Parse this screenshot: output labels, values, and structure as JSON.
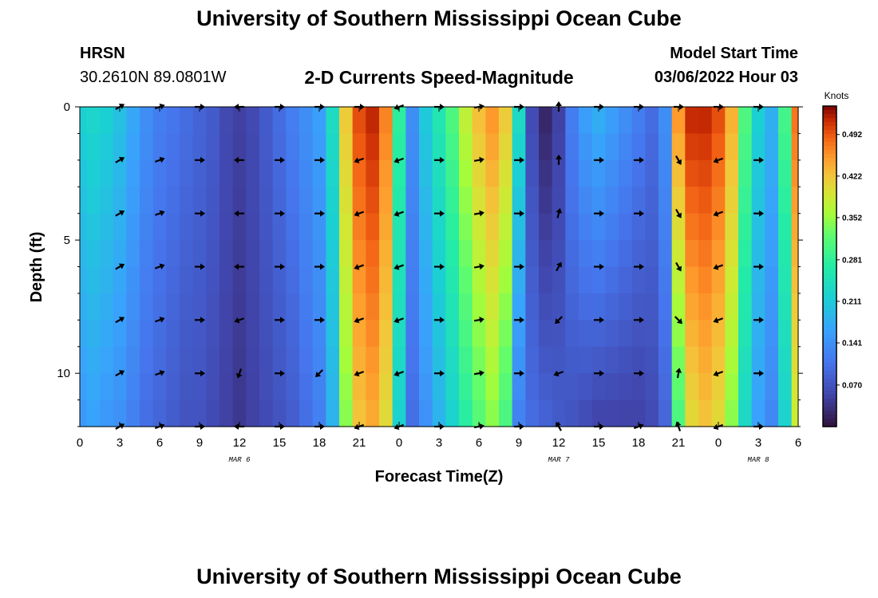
{
  "header": {
    "title": "University of Southern Mississippi Ocean Cube",
    "station": "HRSN",
    "coords": "30.2610N  89.0801W",
    "subtitle": "2-D Currents Speed-Magnitude",
    "model_start_label": "Model Start Time",
    "model_start_value": "03/06/2022 Hour 03"
  },
  "footer": {
    "title": "University of Southern Mississippi Ocean Cube"
  },
  "chart_data": {
    "type": "heatmap",
    "title": "2-D Currents Speed-Magnitude",
    "xlabel": "Forecast Time(Z)",
    "ylabel": "Depth (ft)",
    "colorbar_label": "Knots",
    "xlim": [
      0,
      54
    ],
    "ylim": [
      0,
      12
    ],
    "x_tick_labels": [
      "0",
      "3",
      "6",
      "9",
      "12",
      "15",
      "18",
      "21",
      "0",
      "3",
      "6",
      "9",
      "12",
      "15",
      "18",
      "21",
      "0",
      "3",
      "6"
    ],
    "y_ticks": [
      0,
      5,
      10
    ],
    "date_labels": [
      {
        "label": "MAR 6",
        "hour": 12
      },
      {
        "label": "MAR 7",
        "hour": 36
      },
      {
        "label": "MAR 8",
        "hour": 51
      }
    ],
    "colorbar_ticks": [
      "0.492",
      "0.422",
      "0.352",
      "0.281",
      "0.211",
      "0.141",
      "0.070"
    ],
    "colorbar_range": [
      0.0,
      0.54
    ],
    "column_hour_step": 1,
    "depth_step_ft": 1,
    "speed_profile_surface": [
      0.22,
      0.23,
      0.22,
      0.2,
      0.17,
      0.14,
      0.12,
      0.11,
      0.1,
      0.09,
      0.08,
      0.06,
      0.05,
      0.06,
      0.08,
      0.1,
      0.12,
      0.14,
      0.16,
      0.24,
      0.42,
      0.5,
      0.52,
      0.47,
      0.28,
      0.14,
      0.21,
      0.26,
      0.31,
      0.38,
      0.43,
      0.46,
      0.42,
      0.24,
      0.06,
      0.02,
      0.05,
      0.12,
      0.16,
      0.18,
      0.16,
      0.14,
      0.12,
      0.1,
      0.14,
      0.46,
      0.52,
      0.52,
      0.5,
      0.44,
      0.31,
      0.22,
      0.18,
      0.3,
      0.48
    ],
    "speed_profile_bottom": [
      0.15,
      0.16,
      0.15,
      0.14,
      0.12,
      0.1,
      0.09,
      0.08,
      0.07,
      0.07,
      0.06,
      0.05,
      0.04,
      0.05,
      0.06,
      0.07,
      0.08,
      0.1,
      0.12,
      0.18,
      0.34,
      0.42,
      0.44,
      0.4,
      0.22,
      0.1,
      0.14,
      0.18,
      0.22,
      0.27,
      0.31,
      0.34,
      0.3,
      0.12,
      0.1,
      0.09,
      0.08,
      0.07,
      0.06,
      0.05,
      0.05,
      0.05,
      0.05,
      0.06,
      0.09,
      0.3,
      0.4,
      0.42,
      0.4,
      0.34,
      0.23,
      0.16,
      0.13,
      0.22,
      0.38
    ],
    "vector_hours": [
      3,
      6,
      9,
      12,
      15,
      18,
      21,
      24,
      27,
      30,
      33,
      36,
      39,
      42,
      45,
      48,
      51
    ],
    "vector_depths": [
      0,
      2,
      4,
      6,
      8,
      10,
      12
    ],
    "vector_direction_deg": [
      [
        30,
        20,
        0,
        180,
        0,
        0,
        0,
        200,
        0,
        10,
        0,
        90,
        0,
        0,
        0,
        0,
        0
      ],
      [
        30,
        20,
        0,
        180,
        0,
        0,
        200,
        200,
        0,
        10,
        0,
        90,
        0,
        0,
        300,
        200,
        0
      ],
      [
        30,
        20,
        0,
        180,
        0,
        0,
        200,
        200,
        0,
        10,
        0,
        75,
        0,
        0,
        300,
        200,
        0
      ],
      [
        30,
        20,
        0,
        180,
        0,
        0,
        200,
        200,
        0,
        10,
        0,
        60,
        0,
        0,
        300,
        200,
        0
      ],
      [
        30,
        20,
        0,
        200,
        0,
        0,
        200,
        200,
        0,
        10,
        0,
        225,
        0,
        0,
        315,
        200,
        0
      ],
      [
        30,
        20,
        0,
        250,
        0,
        225,
        200,
        200,
        0,
        10,
        0,
        200,
        0,
        0,
        80,
        200,
        0
      ],
      [
        30,
        20,
        0,
        180,
        0,
        0,
        200,
        200,
        0,
        10,
        0,
        120,
        0,
        20,
        110,
        200,
        0
      ]
    ]
  }
}
